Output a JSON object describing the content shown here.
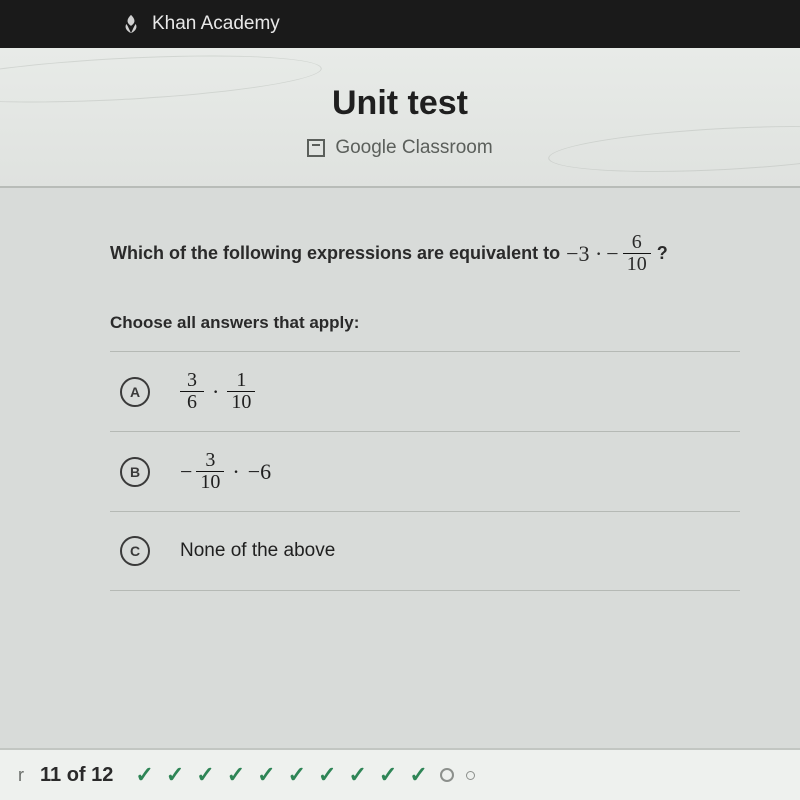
{
  "brand": "Khan Academy",
  "page_title": "Unit test",
  "classroom_label": "Google Classroom",
  "question": {
    "prefix": "Which of the following expressions are equivalent to",
    "expr_leading": "−3 ·",
    "expr_minus": "−",
    "expr_frac_num": "6",
    "expr_frac_den": "10",
    "suffix": "?"
  },
  "instruction": "Choose all answers that apply:",
  "answers": [
    {
      "letter": "A",
      "type": "math",
      "parts": {
        "f1_num": "3",
        "f1_den": "6",
        "dot": "·",
        "f2_num": "1",
        "f2_den": "10"
      }
    },
    {
      "letter": "B",
      "type": "math",
      "parts": {
        "lead": "−",
        "f1_num": "3",
        "f1_den": "10",
        "dot": "·",
        "trail": "−6"
      }
    },
    {
      "letter": "C",
      "type": "text",
      "text": "None of the above"
    }
  ],
  "footer": {
    "left_letter": "r",
    "progress": "11 of 12",
    "checks_count": 10,
    "rings_count": 2
  },
  "colors": {
    "topbar_bg": "#1a1a1a",
    "page_bg": "#d8dbd9",
    "divider": "#b5b9b5",
    "check_green": "#2e8556"
  }
}
